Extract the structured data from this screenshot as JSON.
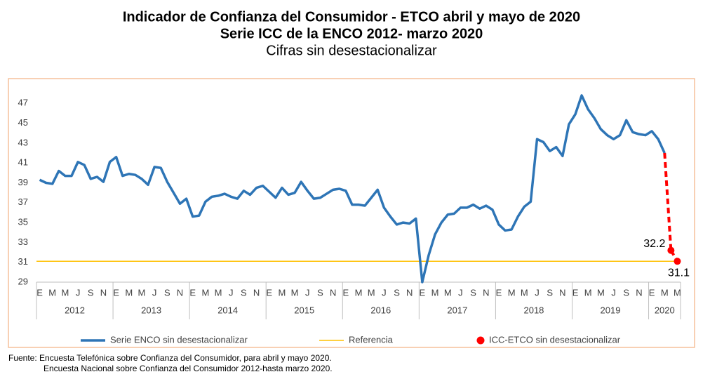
{
  "chart_data": {
    "type": "line",
    "title": "Indicador de Confianza del Consumidor - ETCO abril y mayo de 2020",
    "subtitle": "Serie ICC de la ENCO 2012- marzo 2020",
    "subtitle2": "Cifras sin desestacionalizar",
    "categories": [
      "E",
      null,
      "M",
      null,
      "M",
      null,
      "J",
      null,
      "S",
      null,
      "N",
      null,
      "E",
      null,
      "M",
      null,
      "M",
      null,
      "J",
      null,
      "S",
      null,
      "N",
      null,
      "E",
      null,
      "M",
      null,
      "M",
      null,
      "J",
      null,
      "S",
      null,
      "N",
      null,
      "E",
      null,
      "M",
      null,
      "M",
      null,
      "J",
      null,
      "S",
      null,
      "N",
      null,
      "E",
      null,
      "M",
      null,
      "M",
      null,
      "J",
      null,
      "S",
      null,
      "N",
      null,
      "E",
      null,
      "M",
      null,
      "M",
      null,
      "J",
      null,
      "S",
      null,
      "N",
      null,
      "E",
      null,
      "M",
      null,
      "M",
      null,
      "J",
      null,
      "S",
      null,
      "N",
      null,
      "E",
      null,
      "M",
      null,
      "M",
      null,
      "J",
      null,
      "S",
      null,
      "N",
      null,
      "E",
      null,
      "M",
      null,
      "M"
    ],
    "years": [
      "2012",
      "2013",
      "2014",
      "2015",
      "2016",
      "2017",
      "2018",
      "2019",
      "2020"
    ],
    "series": [
      {
        "name": "Serie ENCO sin desestacionalizar",
        "color": "#2e75b6",
        "values": [
          39.3,
          39.0,
          38.9,
          40.2,
          39.7,
          39.7,
          41.1,
          40.8,
          39.4,
          39.6,
          39.1,
          41.1,
          41.6,
          39.7,
          39.9,
          39.8,
          39.4,
          38.8,
          40.6,
          40.5,
          39.1,
          38.0,
          36.9,
          37.4,
          35.6,
          35.7,
          37.1,
          37.6,
          37.7,
          37.9,
          37.6,
          37.4,
          38.2,
          37.8,
          38.5,
          38.7,
          38.1,
          37.5,
          38.5,
          37.8,
          38.0,
          39.1,
          38.2,
          37.4,
          37.5,
          37.9,
          38.3,
          38.4,
          38.2,
          36.8,
          36.8,
          36.7,
          37.5,
          38.3,
          36.5,
          35.6,
          34.8,
          35.0,
          34.9,
          35.4,
          29.0,
          31.7,
          33.8,
          35.0,
          35.8,
          35.9,
          36.5,
          36.5,
          36.8,
          36.4,
          36.7,
          36.3,
          34.8,
          34.2,
          34.3,
          35.6,
          36.6,
          37.1,
          43.4,
          43.1,
          42.2,
          42.6,
          41.7,
          44.9,
          45.9,
          47.8,
          46.4,
          45.5,
          44.4,
          43.8,
          43.4,
          43.8,
          45.3,
          44.1,
          43.9,
          43.8,
          44.2,
          43.4,
          42.0,
          null,
          null
        ]
      },
      {
        "name": "ICC-ETCO sin desestacionalizar",
        "color": "#ff0000",
        "values": [
          null,
          null,
          null,
          null,
          null,
          null,
          null,
          null,
          null,
          null,
          null,
          null,
          null,
          null,
          null,
          null,
          null,
          null,
          null,
          null,
          null,
          null,
          null,
          null,
          null,
          null,
          null,
          null,
          null,
          null,
          null,
          null,
          null,
          null,
          null,
          null,
          null,
          null,
          null,
          null,
          null,
          null,
          null,
          null,
          null,
          null,
          null,
          null,
          null,
          null,
          null,
          null,
          null,
          null,
          null,
          null,
          null,
          null,
          null,
          null,
          null,
          null,
          null,
          null,
          null,
          null,
          null,
          null,
          null,
          null,
          null,
          null,
          null,
          null,
          null,
          null,
          null,
          null,
          null,
          null,
          null,
          null,
          null,
          null,
          null,
          null,
          null,
          null,
          null,
          null,
          null,
          null,
          null,
          null,
          null,
          null,
          null,
          null,
          null,
          32.2,
          31.1
        ]
      }
    ],
    "reference": {
      "name": "Referencia",
      "color": "#ffc000",
      "value": 31.1
    },
    "ylim": [
      29,
      49
    ],
    "yticks": [
      29,
      31,
      33,
      35,
      37,
      39,
      41,
      43,
      45,
      47
    ],
    "source": [
      "Fuente: Encuesta Telefónica sobre Confianza del Consumidor, para abril y mayo 2020.",
      "Encuesta Nacional sobre Confianza del Consumidor 2012-hasta marzo 2020."
    ]
  }
}
